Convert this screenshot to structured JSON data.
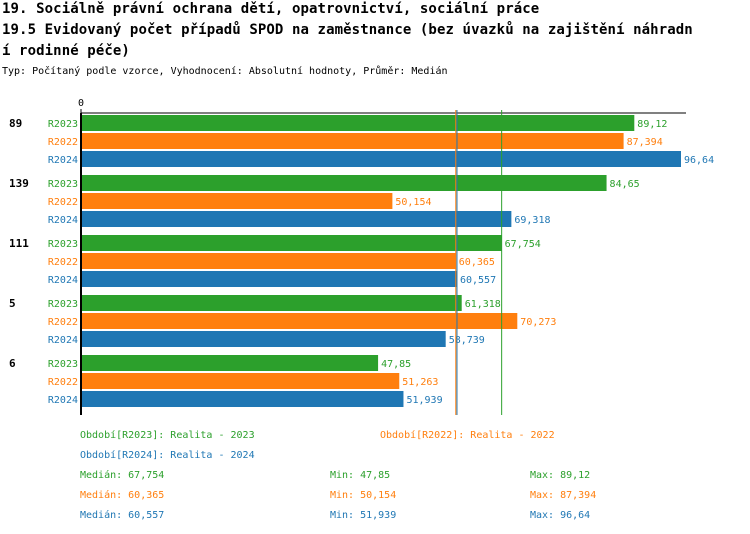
{
  "header": {
    "title_line1": "19. Sociálně právní ochrana dětí, opatrovnictví, sociální práce",
    "title_line2": "19.5 Evidovaný počet případů SPOD na zaměstnance (bez úvazků na zajištění náhradn",
    "title_line3": "í rodinné péče)",
    "subtitle": "Typ: Počítaný podle vzorce, Vyhodnocení: Absolutní hodnoty, Průměr: Medián"
  },
  "colors": {
    "R2023": "#2ca02c",
    "R2022": "#ff7f0e",
    "R2024": "#1f77b4",
    "axis": "#000000"
  },
  "chart_data": {
    "type": "bar",
    "orientation": "horizontal",
    "x_tick_label": "0",
    "xlim": [
      0,
      96.64
    ],
    "categories": [
      "89",
      "139",
      "111",
      "5",
      "6"
    ],
    "series": [
      {
        "name": "R2023",
        "values": [
          89.12,
          84.65,
          67.754,
          61.318,
          47.85
        ],
        "labels": [
          "89,12",
          "84,65",
          "67,754",
          "61,318",
          "47,85"
        ]
      },
      {
        "name": "R2022",
        "values": [
          87.394,
          50.154,
          60.365,
          70.273,
          51.263
        ],
        "labels": [
          "87,394",
          "50,154",
          "60,365",
          "70,273",
          "51,263"
        ]
      },
      {
        "name": "R2024",
        "values": [
          96.64,
          69.318,
          60.557,
          58.739,
          51.939
        ],
        "labels": [
          "96,64",
          "69,318",
          "60,557",
          "58,739",
          "51,939"
        ]
      }
    ],
    "median_lines": [
      {
        "series": "R2023",
        "value": 67.754
      },
      {
        "series": "R2022",
        "value": 60.365
      },
      {
        "series": "R2024",
        "value": 60.557
      }
    ],
    "legend": [
      {
        "series": "R2023",
        "text": "Období[R2023]: Realita - 2023"
      },
      {
        "series": "R2022",
        "text": "Období[R2022]: Realita - 2022"
      },
      {
        "series": "R2024",
        "text": "Období[R2024]: Realita - 2024"
      }
    ],
    "stats": [
      {
        "series": "R2023",
        "median": "Medián: 67,754",
        "min": "Min: 47,85",
        "max": "Max: 89,12"
      },
      {
        "series": "R2022",
        "median": "Medián: 60,365",
        "min": "Min: 50,154",
        "max": "Max: 87,394"
      },
      {
        "series": "R2024",
        "median": "Medián: 60,557",
        "min": "Min: 51,939",
        "max": "Max: 96,64"
      }
    ]
  }
}
